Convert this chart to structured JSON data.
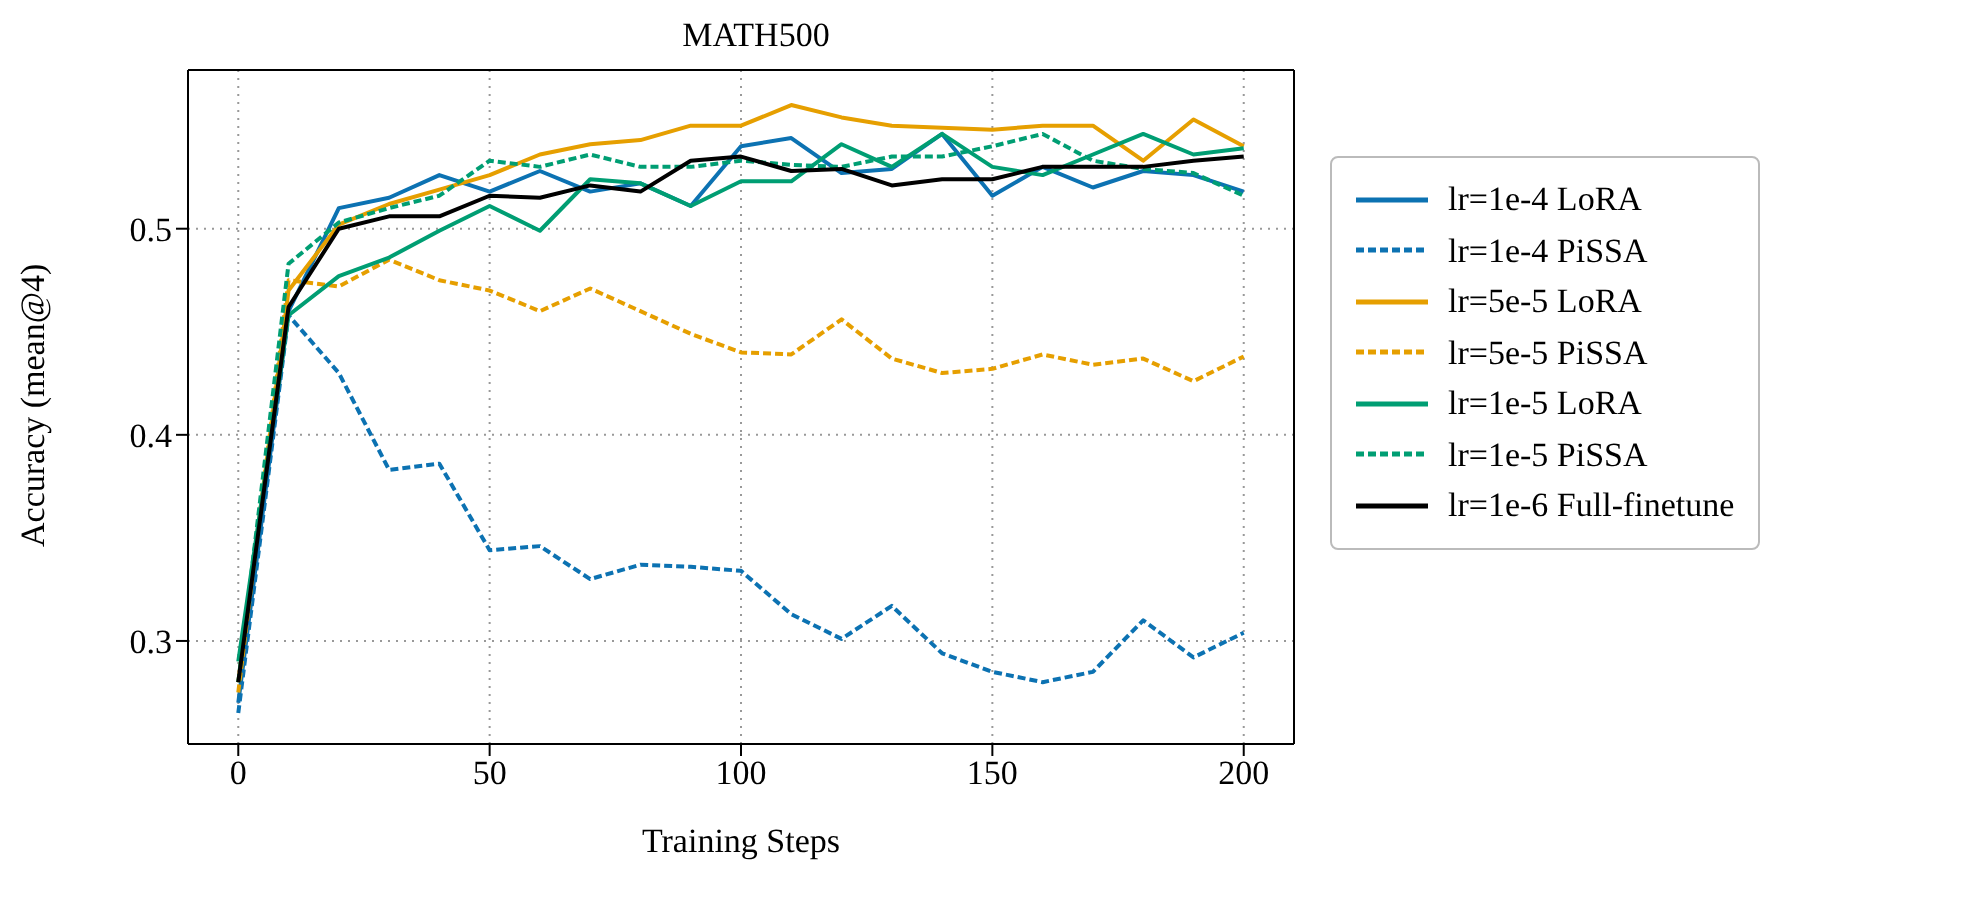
{
  "chart_data": {
    "type": "line",
    "title": "MATH500",
    "xlabel": "Training Steps",
    "ylabel": "Accuracy (mean@4)",
    "x": [
      0,
      10,
      20,
      30,
      40,
      50,
      60,
      70,
      80,
      90,
      100,
      110,
      120,
      130,
      140,
      150,
      160,
      170,
      180,
      190,
      200
    ],
    "xlim": [
      -10,
      210
    ],
    "xticks": [
      0,
      50,
      100,
      150,
      200
    ],
    "ylim": [
      0.25,
      0.577
    ],
    "yticks": [
      0.3,
      0.4,
      0.5
    ],
    "grid": true,
    "legend": "right",
    "marker": "none",
    "series": [
      {
        "name": "lr=1e-4 LoRA",
        "color": "#0c72b2",
        "line_style": "solid",
        "values": [
          0.27,
          0.46,
          0.51,
          0.515,
          0.526,
          0.518,
          0.528,
          0.518,
          0.522,
          0.511,
          0.54,
          0.544,
          0.527,
          0.529,
          0.546,
          0.516,
          0.53,
          0.52,
          0.528,
          0.526,
          0.518
        ]
      },
      {
        "name": "lr=1e-4 PiSSA",
        "color": "#0c72b2",
        "line_style": "dashed",
        "values": [
          0.265,
          0.458,
          0.43,
          0.383,
          0.386,
          0.344,
          0.346,
          0.33,
          0.337,
          0.336,
          0.334,
          0.313,
          0.301,
          0.317,
          0.294,
          0.285,
          0.28,
          0.285,
          0.31,
          0.292,
          0.304
        ]
      },
      {
        "name": "lr=5e-5 LoRA",
        "color": "#e69f00",
        "line_style": "solid",
        "values": [
          0.28,
          0.47,
          0.502,
          0.512,
          0.519,
          0.526,
          0.536,
          0.541,
          0.543,
          0.55,
          0.55,
          0.56,
          0.554,
          0.55,
          0.549,
          0.548,
          0.55,
          0.55,
          0.533,
          0.553,
          0.54
        ]
      },
      {
        "name": "lr=5e-5 PiSSA",
        "color": "#e69f00",
        "line_style": "dashed",
        "values": [
          0.275,
          0.475,
          0.472,
          0.485,
          0.475,
          0.47,
          0.46,
          0.471,
          0.46,
          0.449,
          0.44,
          0.439,
          0.456,
          0.437,
          0.43,
          0.432,
          0.439,
          0.434,
          0.437,
          0.426,
          0.438
        ]
      },
      {
        "name": "lr=1e-5 LoRA",
        "color": "#009e73",
        "line_style": "solid",
        "values": [
          0.29,
          0.458,
          0.477,
          0.486,
          0.499,
          0.511,
          0.499,
          0.524,
          0.522,
          0.511,
          0.523,
          0.523,
          0.541,
          0.53,
          0.546,
          0.53,
          0.526,
          0.536,
          0.546,
          0.536,
          0.539
        ]
      },
      {
        "name": "lr=1e-5 PiSSA",
        "color": "#009e73",
        "line_style": "dashed",
        "values": [
          0.28,
          0.483,
          0.503,
          0.51,
          0.516,
          0.533,
          0.53,
          0.536,
          0.53,
          0.53,
          0.533,
          0.531,
          0.53,
          0.535,
          0.535,
          0.54,
          0.546,
          0.533,
          0.529,
          0.527,
          0.516
        ]
      },
      {
        "name": "lr=1e-6 Full-finetune",
        "color": "#000000",
        "line_style": "solid",
        "values": [
          0.28,
          0.462,
          0.5,
          0.506,
          0.506,
          0.516,
          0.515,
          0.521,
          0.518,
          0.533,
          0.535,
          0.528,
          0.529,
          0.521,
          0.524,
          0.524,
          0.53,
          0.53,
          0.53,
          0.533,
          0.535
        ]
      }
    ]
  }
}
